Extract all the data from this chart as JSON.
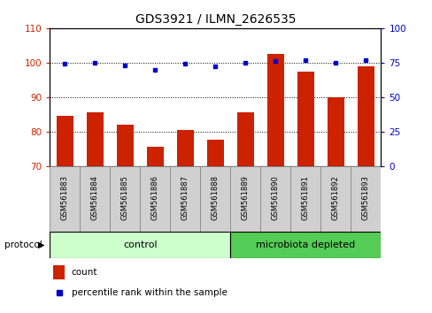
{
  "title": "GDS3921 / ILMN_2626535",
  "samples": [
    "GSM561883",
    "GSM561884",
    "GSM561885",
    "GSM561886",
    "GSM561887",
    "GSM561888",
    "GSM561889",
    "GSM561890",
    "GSM561891",
    "GSM561892",
    "GSM561893"
  ],
  "bar_values": [
    84.5,
    85.5,
    82.0,
    75.5,
    80.5,
    77.5,
    85.5,
    102.5,
    97.5,
    90.0,
    99.0
  ],
  "dot_values": [
    74,
    75,
    73,
    70,
    74,
    72,
    75,
    76,
    77,
    75,
    77
  ],
  "ylim_left": [
    70,
    110
  ],
  "ylim_right": [
    0,
    100
  ],
  "yticks_left": [
    70,
    80,
    90,
    100,
    110
  ],
  "yticks_right": [
    0,
    25,
    50,
    75,
    100
  ],
  "bar_color": "#cc2200",
  "dot_color": "#0000cc",
  "control_color": "#ccffcc",
  "microbiota_color": "#55cc55",
  "label_color_left": "#cc2200",
  "label_color_right": "#0000cc",
  "control_samples": 6,
  "microbiota_samples": 5,
  "legend_count": "count",
  "legend_percentile": "percentile rank within the sample",
  "protocol_label": "protocol",
  "control_label": "control",
  "microbiota_label": "microbiota depleted",
  "box_color": "#d0d0d0"
}
